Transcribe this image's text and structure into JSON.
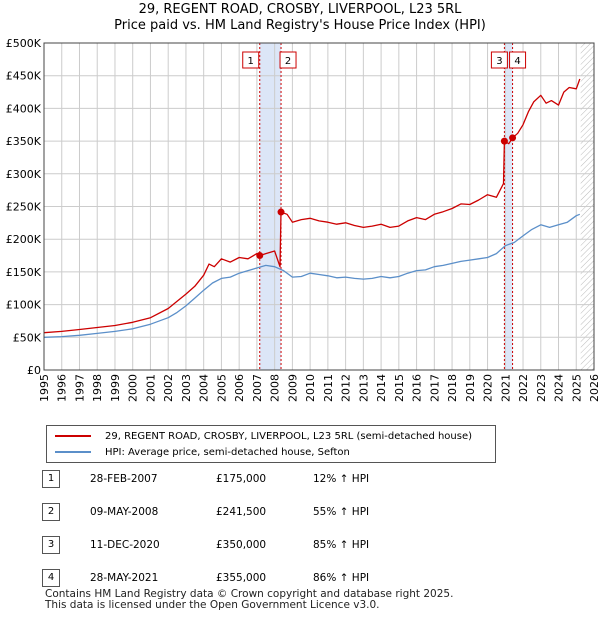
{
  "title_line1": "29, REGENT ROAD, CROSBY, LIVERPOOL, L23 5RL",
  "title_line2": "Price paid vs. HM Land Registry's House Price Index (HPI)",
  "legend": {
    "red_label": "29, REGENT ROAD, CROSBY, LIVERPOOL, L23 5RL (semi-detached house)",
    "blue_label": "HPI: Average price, semi-detached house, Sefton"
  },
  "colors": {
    "red": "#cc0000",
    "blue": "#5b8fc9",
    "band": "#dce6f7",
    "grid": "#cccccc",
    "event_line": "#cc0000"
  },
  "sales": [
    {
      "num": "1",
      "date": "28-FEB-2007",
      "price": "£175,000",
      "hpi": "12% ↑ HPI"
    },
    {
      "num": "2",
      "date": "09-MAY-2008",
      "price": "£241,500",
      "hpi": "55% ↑ HPI"
    },
    {
      "num": "3",
      "date": "11-DEC-2020",
      "price": "£350,000",
      "hpi": "85% ↑ HPI"
    },
    {
      "num": "4",
      "date": "28-MAY-2021",
      "price": "£355,000",
      "hpi": "86% ↑ HPI"
    }
  ],
  "footer_line1": "Contains HM Land Registry data © Crown copyright and database right 2025.",
  "footer_line2": "This data is licensed under the Open Government Licence v3.0.",
  "chart_data": {
    "type": "line",
    "title": "29, REGENT ROAD, CROSBY, LIVERPOOL, L23 5RL",
    "subtitle": "Price paid vs. HM Land Registry's House Price Index (HPI)",
    "xlim": [
      1995,
      2026
    ],
    "ylim": [
      0,
      500000
    ],
    "x_ticks": [
      1995,
      1996,
      1997,
      1998,
      1999,
      2000,
      2001,
      2002,
      2003,
      2004,
      2005,
      2006,
      2007,
      2008,
      2009,
      2010,
      2011,
      2012,
      2013,
      2014,
      2015,
      2016,
      2017,
      2018,
      2019,
      2020,
      2021,
      2022,
      2023,
      2024,
      2025,
      2026
    ],
    "y_ticks": [
      {
        "value": 0,
        "label": "£0"
      },
      {
        "value": 50000,
        "label": "£50K"
      },
      {
        "value": 100000,
        "label": "£100K"
      },
      {
        "value": 150000,
        "label": "£150K"
      },
      {
        "value": 200000,
        "label": "£200K"
      },
      {
        "value": 250000,
        "label": "£250K"
      },
      {
        "value": 300000,
        "label": "£300K"
      },
      {
        "value": 350000,
        "label": "£350K"
      },
      {
        "value": 400000,
        "label": "£400K"
      },
      {
        "value": 450000,
        "label": "£450K"
      },
      {
        "value": 500000,
        "label": "£500K"
      }
    ],
    "grid": true,
    "shaded_periods": [
      [
        2007.16,
        2008.36
      ],
      [
        2020.95,
        2021.41
      ]
    ],
    "future_hatch_start": 2025.25,
    "events": [
      {
        "label": "1",
        "x": 2007.16,
        "y": 175000
      },
      {
        "label": "2",
        "x": 2008.36,
        "y": 241500
      },
      {
        "label": "3",
        "x": 2020.95,
        "y": 350000
      },
      {
        "label": "4",
        "x": 2021.41,
        "y": 355000
      }
    ],
    "series": [
      {
        "name": "29, REGENT ROAD, CROSBY, LIVERPOOL, L23 5RL (semi-detached house)",
        "color": "#cc0000",
        "x": [
          1995,
          1996,
          1997,
          1998,
          1999,
          2000,
          2001,
          2002,
          2002.5,
          2003,
          2003.5,
          2004,
          2004.3,
          2004.6,
          2005,
          2005.5,
          2006,
          2006.5,
          2007,
          2007.16,
          2007.5,
          2008,
          2008.3,
          2008.36,
          2008.7,
          2009,
          2009.5,
          2010,
          2010.5,
          2011,
          2011.5,
          2012,
          2012.5,
          2013,
          2013.5,
          2014,
          2014.5,
          2015,
          2015.5,
          2016,
          2016.5,
          2017,
          2017.5,
          2018,
          2018.5,
          2019,
          2019.5,
          2020,
          2020.5,
          2020.9,
          2020.95,
          2021.2,
          2021.41,
          2021.7,
          2022,
          2022.3,
          2022.6,
          2023,
          2023.3,
          2023.6,
          2024,
          2024.3,
          2024.6,
          2025,
          2025.2
        ],
        "y": [
          57000,
          59000,
          62000,
          65000,
          68000,
          73000,
          80000,
          94000,
          105000,
          116000,
          128000,
          145000,
          162000,
          158000,
          170000,
          165000,
          172000,
          170000,
          178000,
          175000,
          178000,
          182000,
          158000,
          241500,
          238000,
          226000,
          230000,
          232000,
          228000,
          226000,
          223000,
          225000,
          221000,
          218000,
          220000,
          223000,
          218000,
          220000,
          228000,
          233000,
          230000,
          238000,
          242000,
          247000,
          254000,
          253000,
          260000,
          268000,
          264000,
          285000,
          350000,
          346000,
          355000,
          362000,
          375000,
          395000,
          410000,
          420000,
          408000,
          412000,
          405000,
          425000,
          432000,
          430000,
          445000
        ]
      },
      {
        "name": "HPI: Average price, semi-detached house, Sefton",
        "color": "#5b8fc9",
        "x": [
          1995,
          1996,
          1997,
          1998,
          1999,
          2000,
          2001,
          2002,
          2002.5,
          2003,
          2003.5,
          2004,
          2004.5,
          2005,
          2005.5,
          2006,
          2006.5,
          2007,
          2007.5,
          2008,
          2008.5,
          2009,
          2009.5,
          2010,
          2010.5,
          2011,
          2011.5,
          2012,
          2012.5,
          2013,
          2013.5,
          2014,
          2014.5,
          2015,
          2015.5,
          2016,
          2016.5,
          2017,
          2017.5,
          2018,
          2018.5,
          2019,
          2019.5,
          2020,
          2020.5,
          2021,
          2021.5,
          2022,
          2022.5,
          2023,
          2023.5,
          2024,
          2024.5,
          2025,
          2025.2
        ],
        "y": [
          50000,
          51000,
          53000,
          56000,
          59000,
          63000,
          70000,
          80000,
          88000,
          98000,
          110000,
          122000,
          133000,
          140000,
          142000,
          148000,
          152000,
          156000,
          160000,
          158000,
          152000,
          142000,
          143000,
          148000,
          146000,
          144000,
          141000,
          142000,
          140000,
          139000,
          140000,
          143000,
          141000,
          143000,
          148000,
          152000,
          153000,
          158000,
          160000,
          163000,
          166000,
          168000,
          170000,
          172000,
          178000,
          190000,
          195000,
          205000,
          215000,
          222000,
          218000,
          222000,
          226000,
          236000,
          238000
        ]
      }
    ]
  }
}
